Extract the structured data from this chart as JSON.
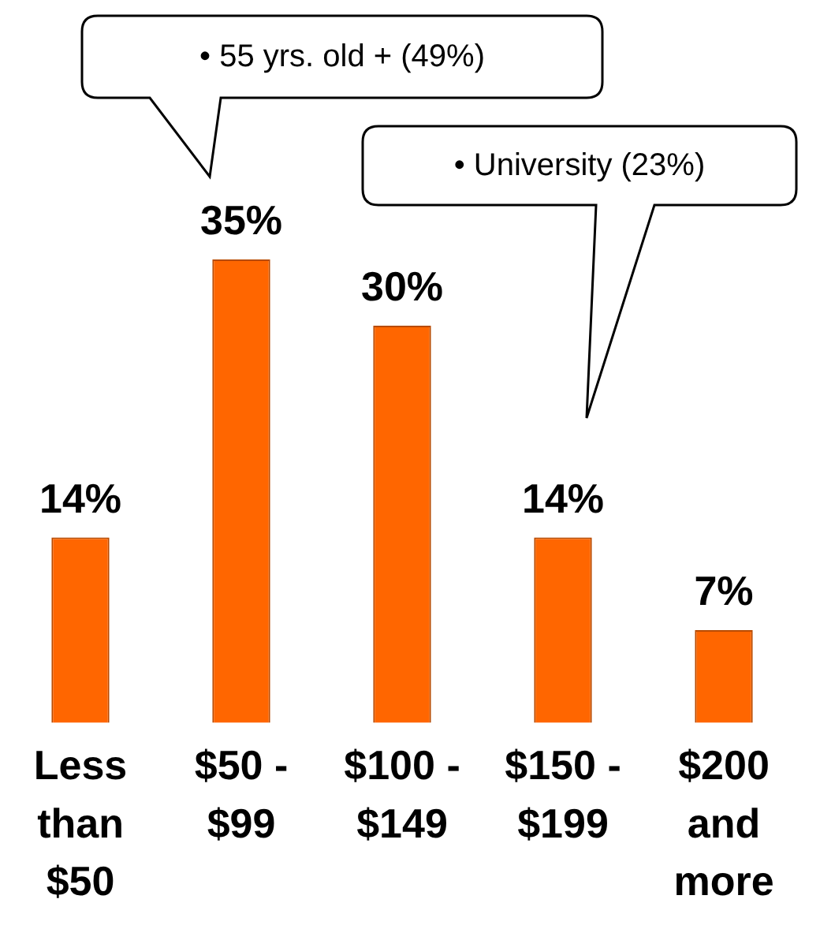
{
  "chart_data": {
    "type": "bar",
    "categories": [
      "Less than $50",
      "$50 - $99",
      "$100 - $149",
      "$150 - $199",
      "$200 and more"
    ],
    "values": [
      14,
      35,
      30,
      14,
      7
    ],
    "value_labels": [
      "14%",
      "35%",
      "30%",
      "14%",
      "7%"
    ],
    "color": "#ff6600",
    "annotations": [
      "• 55 yrs. old + (49%)",
      "• University (23%)"
    ],
    "grid": false,
    "legend": false
  }
}
